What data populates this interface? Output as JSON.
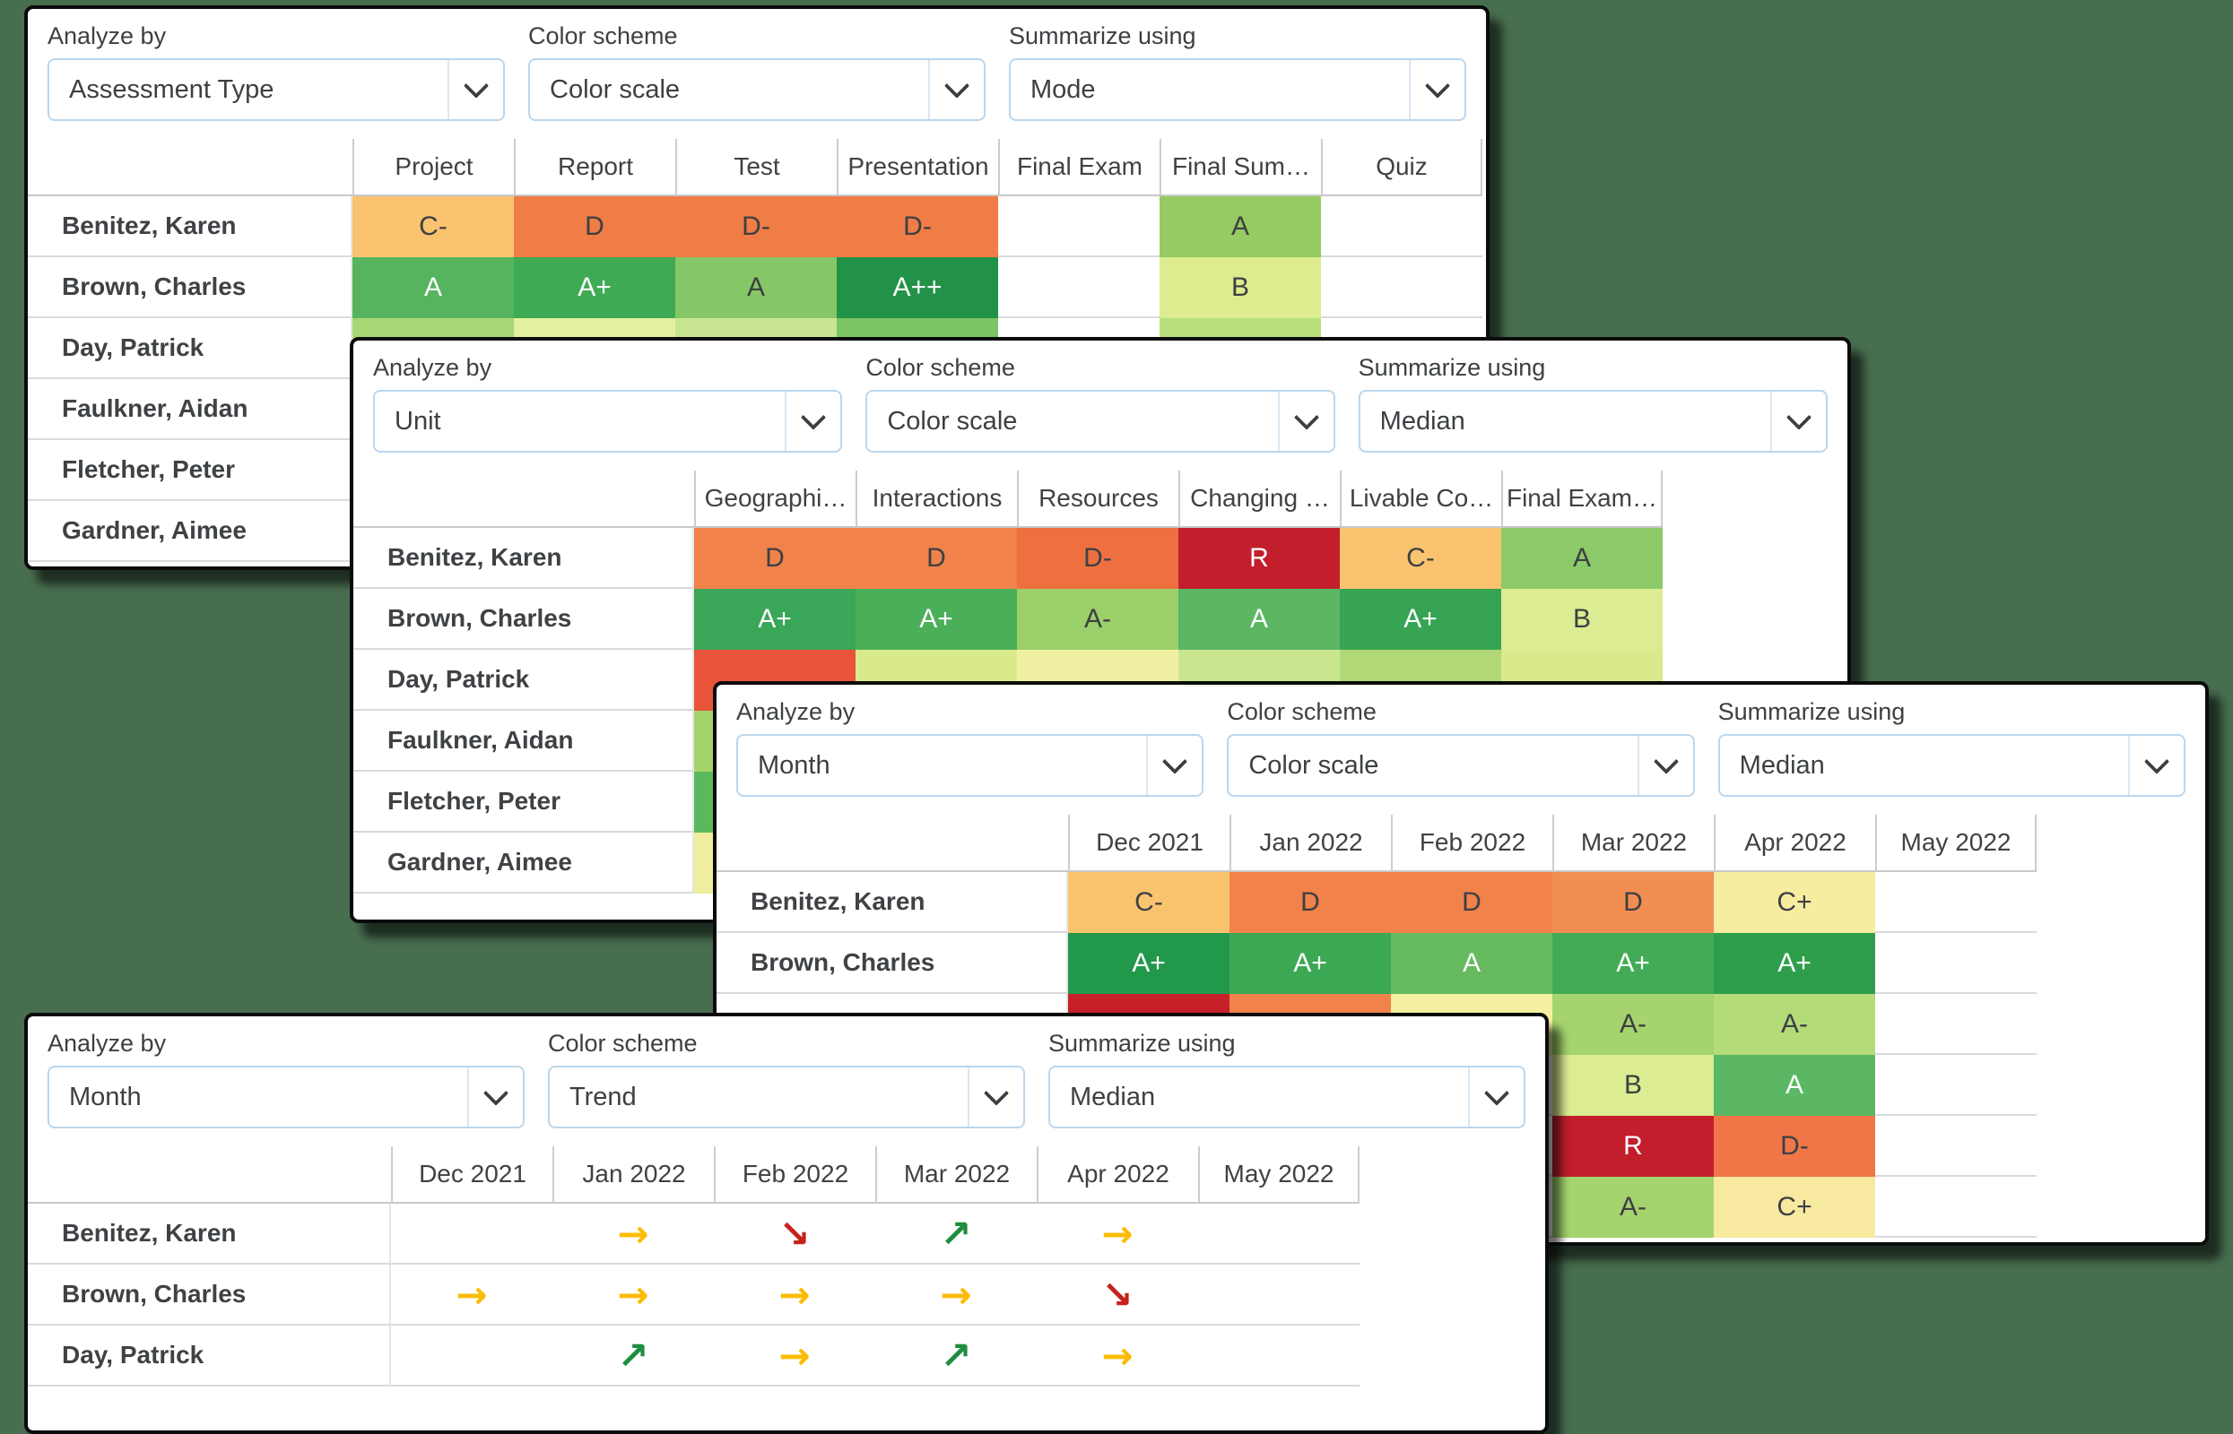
{
  "labels": {
    "analyze": "Analyze by",
    "scheme": "Color scheme",
    "summarize": "Summarize using"
  },
  "icons": {
    "dropdown_chevron": "chevron-down"
  },
  "colors": {
    "background": "#486E50",
    "select_border": "#BBD6EC",
    "trend_up": "#1E8E3E",
    "trend_flat": "#FBBC04",
    "trend_down": "#C5221F"
  },
  "panels": [
    {
      "title": "assessment-type-color-scale",
      "controls": {
        "analyze": "Assessment Type",
        "scheme": "Color scale",
        "summarize": "Mode"
      },
      "columns": [
        "Project",
        "Report",
        "Test",
        "Presentation",
        "Final Exam",
        "Final Sum…",
        "Quiz"
      ],
      "rows": [
        {
          "name": "Benitez, Karen",
          "cells": [
            {
              "v": "C-",
              "bg": "#F9C36F",
              "tx": "d"
            },
            {
              "v": "D",
              "bg": "#F07C46",
              "tx": "d"
            },
            {
              "v": "D-",
              "bg": "#F07C46",
              "tx": "d"
            },
            {
              "v": "D-",
              "bg": "#F07C46",
              "tx": "d"
            },
            {},
            {
              "v": "A",
              "bg": "#95CB62",
              "tx": "d"
            },
            {}
          ]
        },
        {
          "name": "Brown, Charles",
          "cells": [
            {
              "v": "A",
              "bg": "#56B45E",
              "tx": "w"
            },
            {
              "v": "A+",
              "bg": "#3FAA54",
              "tx": "w"
            },
            {
              "v": "A",
              "bg": "#85C767",
              "tx": "d"
            },
            {
              "v": "A++",
              "bg": "#219247",
              "tx": "w"
            },
            {},
            {
              "v": "B",
              "bg": "#DCEC8E",
              "tx": "d"
            },
            {}
          ]
        },
        {
          "name": "Day, Patrick",
          "cells": [
            {
              "v": "",
              "bg": "#A8D675"
            },
            {
              "v": "",
              "bg": "#E3F0A0"
            },
            {
              "v": "",
              "bg": "#C9E591"
            },
            {
              "v": "",
              "bg": "#7CC566"
            },
            {},
            {
              "v": "",
              "bg": "#B7DF7D"
            },
            {}
          ]
        },
        {
          "name": "Faulkner, Aidan",
          "cells": [
            {},
            {},
            {},
            {},
            {},
            {},
            {}
          ]
        },
        {
          "name": "Fletcher, Peter",
          "cells": [
            {},
            {},
            {},
            {},
            {},
            {},
            {}
          ]
        },
        {
          "name": "Gardner, Aimee",
          "cells": [
            {},
            {},
            {},
            {},
            {},
            {},
            {}
          ]
        }
      ]
    },
    {
      "title": "unit-color-scale",
      "controls": {
        "analyze": "Unit",
        "scheme": "Color scale",
        "summarize": "Median"
      },
      "columns": [
        "Geographi…",
        "Interactions",
        "Resources",
        "Changing …",
        "Livable Co…",
        "Final Exam…"
      ],
      "rows": [
        {
          "name": "Benitez, Karen",
          "cells": [
            {
              "v": "D",
              "bg": "#F0824A",
              "tx": "d"
            },
            {
              "v": "D",
              "bg": "#F0824A",
              "tx": "d"
            },
            {
              "v": "D-",
              "bg": "#EE7040",
              "tx": "d"
            },
            {
              "v": "R",
              "bg": "#C21E2C",
              "tx": "w"
            },
            {
              "v": "C-",
              "bg": "#F9C36F",
              "tx": "d"
            },
            {
              "v": "A",
              "bg": "#8CC968",
              "tx": "d"
            }
          ]
        },
        {
          "name": "Brown, Charles",
          "cells": [
            {
              "v": "A+",
              "bg": "#3AA657",
              "tx": "w"
            },
            {
              "v": "A+",
              "bg": "#4BAE59",
              "tx": "w"
            },
            {
              "v": "A-",
              "bg": "#9CD06B",
              "tx": "d"
            },
            {
              "v": "A",
              "bg": "#5BB763",
              "tx": "w"
            },
            {
              "v": "A+",
              "bg": "#37A453",
              "tx": "w"
            },
            {
              "v": "B",
              "bg": "#DCEC92",
              "tx": "d"
            }
          ]
        },
        {
          "name": "Day, Patrick",
          "cells": [
            {
              "v": "",
              "bg": "#E8543A"
            },
            {
              "v": "",
              "bg": "#D9EA8C"
            },
            {
              "v": "",
              "bg": "#F0F0A3"
            },
            {
              "v": "",
              "bg": "#C9E68F"
            },
            {
              "v": "",
              "bg": "#B0D877"
            },
            {
              "v": "",
              "bg": "#D9EA8C"
            }
          ]
        },
        {
          "name": "Faulkner, Aidan",
          "cells": [
            {
              "v": "",
              "bg": "#A5D46A"
            },
            {},
            {},
            {},
            {},
            {}
          ]
        },
        {
          "name": "Fletcher, Peter",
          "cells": [
            {
              "v": "",
              "bg": "#5CB85C"
            },
            {},
            {},
            {},
            {},
            {}
          ]
        },
        {
          "name": "Gardner, Aimee",
          "cells": [
            {
              "v": "",
              "bg": "#F0EE9E"
            },
            {},
            {},
            {},
            {},
            {}
          ]
        }
      ]
    },
    {
      "title": "month-color-scale",
      "controls": {
        "analyze": "Month",
        "scheme": "Color scale",
        "summarize": "Median"
      },
      "columns": [
        "Dec 2021",
        "Jan 2022",
        "Feb 2022",
        "Mar 2022",
        "Apr 2022",
        "May 2022"
      ],
      "rows": [
        {
          "name": "Benitez, Karen",
          "cells": [
            {
              "v": "C-",
              "bg": "#FAC36E",
              "tx": "d"
            },
            {
              "v": "D",
              "bg": "#F0824A",
              "tx": "d"
            },
            {
              "v": "D",
              "bg": "#F0824A",
              "tx": "d"
            },
            {
              "v": "D",
              "bg": "#F28E52",
              "tx": "d"
            },
            {
              "v": "C+",
              "bg": "#F7ECA0",
              "tx": "d"
            },
            {}
          ]
        },
        {
          "name": "Brown, Charles",
          "cells": [
            {
              "v": "A+",
              "bg": "#21984A",
              "tx": "w"
            },
            {
              "v": "A+",
              "bg": "#3DA854",
              "tx": "w"
            },
            {
              "v": "A",
              "bg": "#66BB5E",
              "tx": "w"
            },
            {
              "v": "A+",
              "bg": "#43AB56",
              "tx": "w"
            },
            {
              "v": "A+",
              "bg": "#2F9E4B",
              "tx": "w"
            },
            {}
          ]
        },
        {
          "name": "Day, Patrick",
          "cells": [
            {
              "v": "",
              "bg": "#C62129"
            },
            {
              "v": "",
              "bg": "#F0824A"
            },
            {
              "v": "",
              "bg": "#F5EFA2"
            },
            {
              "v": "A-",
              "bg": "#A5D46E",
              "tx": "d"
            },
            {
              "v": "A-",
              "bg": "#B3DB7A",
              "tx": "d"
            },
            {}
          ]
        },
        {
          "name": "Faulkner, Aidan",
          "cells": [
            {},
            {},
            {},
            {
              "v": "B",
              "bg": "#DCEC92",
              "tx": "d"
            },
            {
              "v": "A",
              "bg": "#5BB763",
              "tx": "w"
            },
            {}
          ]
        },
        {
          "name": "Fletcher, Peter",
          "cells": [
            {},
            {},
            {},
            {
              "v": "R",
              "bg": "#C21E2C",
              "tx": "w"
            },
            {
              "v": "D-",
              "bg": "#F07648",
              "tx": "d"
            },
            {}
          ]
        },
        {
          "name": "Gardner, Aimee",
          "cells": [
            {},
            {},
            {},
            {
              "v": "A-",
              "bg": "#A5D46E",
              "tx": "d"
            },
            {
              "v": "C+",
              "bg": "#F7E9A0",
              "tx": "d"
            },
            {}
          ]
        }
      ]
    },
    {
      "title": "month-trend",
      "controls": {
        "analyze": "Month",
        "scheme": "Trend",
        "summarize": "Median"
      },
      "columns": [
        "Dec 2021",
        "Jan 2022",
        "Feb 2022",
        "Mar 2022",
        "Apr 2022",
        "May 2022"
      ],
      "rows": [
        {
          "name": "Benitez, Karen",
          "cells": [
            {},
            {
              "v": "→",
              "fg": "#FBBC04"
            },
            {
              "v": "↘",
              "fg": "#C5221F"
            },
            {
              "v": "↗",
              "fg": "#1E8E3E"
            },
            {
              "v": "→",
              "fg": "#FBBC04"
            },
            {}
          ]
        },
        {
          "name": "Brown, Charles",
          "cells": [
            {
              "v": "→",
              "fg": "#FBBC04"
            },
            {
              "v": "→",
              "fg": "#FBBC04"
            },
            {
              "v": "→",
              "fg": "#FBBC04"
            },
            {
              "v": "→",
              "fg": "#FBBC04"
            },
            {
              "v": "↘",
              "fg": "#C5221F"
            },
            {}
          ]
        },
        {
          "name": "Day, Patrick",
          "cells": [
            {},
            {
              "v": "↗",
              "fg": "#1E8E3E"
            },
            {
              "v": "→",
              "fg": "#FBBC04"
            },
            {
              "v": "↗",
              "fg": "#1E8E3E"
            },
            {
              "v": "→",
              "fg": "#FBBC04"
            },
            {}
          ]
        }
      ]
    }
  ]
}
